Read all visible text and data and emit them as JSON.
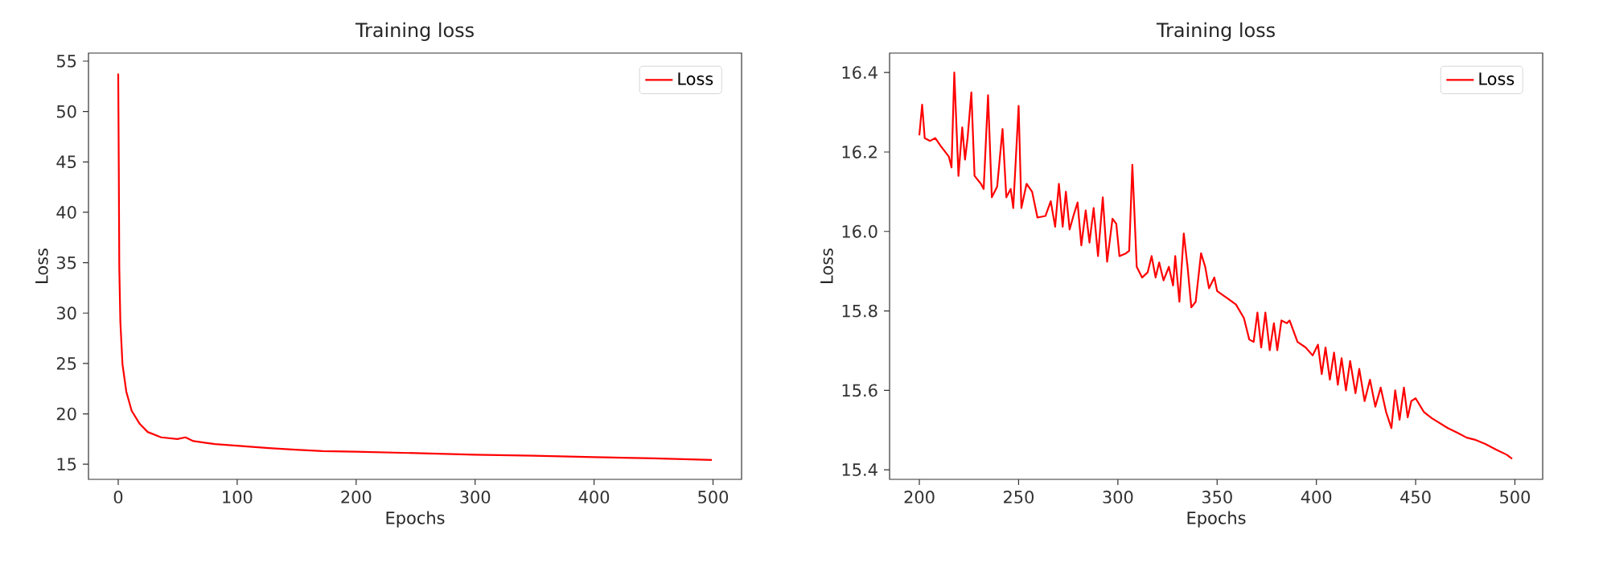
{
  "chart_data": [
    {
      "type": "line",
      "title": "Training loss",
      "xlabel": "Epochs",
      "ylabel": "Loss",
      "xlim": [
        -25,
        524
      ],
      "ylim": [
        13.5,
        55.8
      ],
      "xticks": [
        0,
        100,
        200,
        300,
        400,
        500
      ],
      "yticks": [
        15,
        20,
        25,
        30,
        35,
        40,
        45,
        50,
        55
      ],
      "legend": "top right",
      "grid": false,
      "series": [
        {
          "name": "Loss",
          "color": "#ff0000",
          "x": [
            0,
            0.45,
            0.9,
            1.8,
            3.6,
            6.8,
            11.3,
            18.1,
            24.8,
            36.1,
            49.7,
            56.5,
            63.2,
            81.3,
            103.9,
            126.5,
            149,
            171.6,
            200,
            250,
            300,
            350,
            400,
            450,
            499
          ],
          "values": [
            53.77,
            45.1,
            34.5,
            29.1,
            24.9,
            22.2,
            20.3,
            19.0,
            18.2,
            17.67,
            17.5,
            17.67,
            17.3,
            17.0,
            16.8,
            16.6,
            16.45,
            16.3,
            16.24,
            16.1,
            15.95,
            15.85,
            15.7,
            15.58,
            15.43
          ]
        }
      ]
    },
    {
      "type": "line",
      "title": "Training loss",
      "xlabel": "Epochs",
      "ylabel": "Loss",
      "xlim": [
        185,
        514
      ],
      "ylim": [
        15.376,
        16.449
      ],
      "xticks": [
        200,
        250,
        300,
        350,
        400,
        450,
        500
      ],
      "yticks": [
        {
          "value": 15.4,
          "label": "15.4"
        },
        {
          "value": 15.6,
          "label": "15.6"
        },
        {
          "value": 15.8,
          "label": "15.8"
        },
        {
          "value": 16.0,
          "label": "16.0"
        },
        {
          "value": 16.2,
          "label": "16.2"
        },
        {
          "value": 16.4,
          "label": "16.4"
        }
      ],
      "legend": "top right",
      "grid": false,
      "series": [
        {
          "name": "Loss",
          "color": "#ff0000",
          "x": [
            200,
            201.4,
            202.7,
            205.4,
            208,
            210.8,
            214.9,
            216.2,
            217.6,
            219.7,
            221.6,
            223,
            224.3,
            226.2,
            227.8,
            231,
            232.4,
            234.6,
            236.5,
            239.2,
            241.9,
            243.8,
            246,
            247.3,
            250,
            251.4,
            254,
            256.8,
            259.5,
            263.5,
            266.2,
            268.4,
            270.3,
            272.2,
            273.8,
            275.7,
            277.6,
            279.7,
            281.6,
            283.8,
            285.7,
            287.8,
            290,
            292.4,
            294.6,
            297.3,
            299.2,
            300.8,
            304.1,
            305.7,
            307.3,
            309.5,
            312.2,
            315,
            317,
            319,
            320.8,
            323,
            325.7,
            327.8,
            328.9,
            331,
            333.2,
            335.1,
            337,
            339.2,
            341.9,
            344,
            345.9,
            348.6,
            350,
            354,
            359.5,
            363.5,
            366.2,
            368.4,
            370.3,
            372.2,
            374.3,
            376.5,
            378.6,
            380.3,
            382.4,
            385.1,
            386.5,
            390.5,
            394.6,
            398.1,
            400.8,
            402.7,
            404.6,
            406.8,
            408.9,
            410.8,
            412.7,
            414.9,
            417,
            419.7,
            421.6,
            424.3,
            427,
            429.7,
            432.4,
            435.1,
            437.8,
            439.7,
            441.9,
            444.1,
            446,
            447.8,
            450,
            454.1,
            458.1,
            466.2,
            471.6,
            475.7,
            479.7,
            485.1,
            490.5,
            495.9,
            498.6
          ],
          "values": [
            16.242,
            16.319,
            16.235,
            16.228,
            16.235,
            16.215,
            16.188,
            16.161,
            16.4,
            16.14,
            16.262,
            16.181,
            16.235,
            16.35,
            16.14,
            16.12,
            16.107,
            16.343,
            16.086,
            16.113,
            16.258,
            16.086,
            16.107,
            16.059,
            16.316,
            16.059,
            16.12,
            16.1,
            16.035,
            16.039,
            16.076,
            16.012,
            16.12,
            16.012,
            16.1,
            16.005,
            16.039,
            16.073,
            15.965,
            16.053,
            15.972,
            16.059,
            15.938,
            16.086,
            15.924,
            16.032,
            16.019,
            15.938,
            15.945,
            15.951,
            16.168,
            15.911,
            15.884,
            15.897,
            15.938,
            15.884,
            15.922,
            15.877,
            15.911,
            15.864,
            15.938,
            15.823,
            15.995,
            15.911,
            15.809,
            15.823,
            15.945,
            15.911,
            15.857,
            15.884,
            15.85,
            15.836,
            15.816,
            15.782,
            15.728,
            15.722,
            15.796,
            15.708,
            15.796,
            15.701,
            15.769,
            15.701,
            15.776,
            15.769,
            15.776,
            15.722,
            15.708,
            15.688,
            15.715,
            15.641,
            15.708,
            15.627,
            15.695,
            15.614,
            15.681,
            15.6,
            15.674,
            15.593,
            15.654,
            15.573,
            15.627,
            15.559,
            15.607,
            15.546,
            15.505,
            15.6,
            15.526,
            15.607,
            15.532,
            15.573,
            15.58,
            15.546,
            15.53,
            15.505,
            15.492,
            15.481,
            15.476,
            15.465,
            15.451,
            15.438,
            15.428
          ]
        }
      ]
    }
  ]
}
